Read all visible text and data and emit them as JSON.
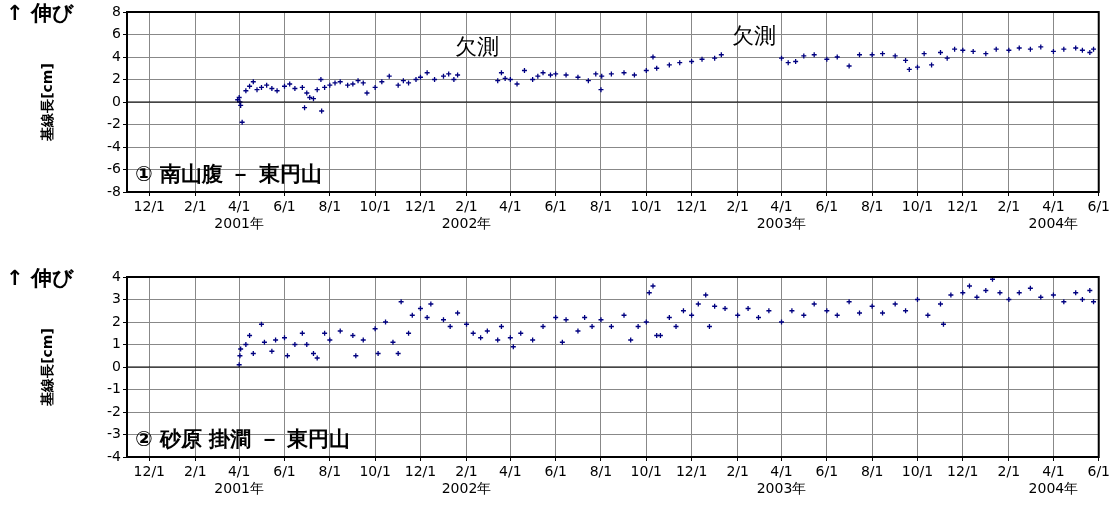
{
  "chart_data": [
    {
      "type": "scatter",
      "title": "① 南山腹 － 東円山",
      "ylabel": "基線長[cm]",
      "x": [
        "2001-03-30",
        "2001-04-01",
        "2001-04-02",
        "2001-04-03",
        "2001-04-05",
        "2001-04-10",
        "2001-04-15",
        "2001-04-20",
        "2001-04-25",
        "2001-05-01",
        "2001-05-08",
        "2001-05-15",
        "2001-05-22",
        "2001-06-01",
        "2001-06-08",
        "2001-06-15",
        "2001-06-25",
        "2001-06-28",
        "2001-07-01",
        "2001-07-05",
        "2001-07-10",
        "2001-07-15",
        "2001-07-20",
        "2001-07-21",
        "2001-07-25",
        "2001-08-01",
        "2001-08-08",
        "2001-08-15",
        "2001-08-25",
        "2001-09-01",
        "2001-09-08",
        "2001-09-15",
        "2001-09-20",
        "2001-10-01",
        "2001-10-10",
        "2001-10-20",
        "2001-11-01",
        "2001-11-08",
        "2001-11-15",
        "2001-11-25",
        "2001-12-01",
        "2001-12-10",
        "2001-12-20",
        "2002-01-01",
        "2002-01-08",
        "2002-01-15",
        "2002-01-20",
        "2002-03-15",
        "2002-03-20",
        "2002-03-25",
        "2002-04-01",
        "2002-04-10",
        "2002-04-20",
        "2002-05-01",
        "2002-05-08",
        "2002-05-15",
        "2002-05-25",
        "2002-06-01",
        "2002-06-15",
        "2002-07-01",
        "2002-07-15",
        "2002-07-25",
        "2002-08-01",
        "2002-08-02",
        "2002-08-15",
        "2002-09-01",
        "2002-09-15",
        "2002-10-01",
        "2002-10-10",
        "2002-10-15",
        "2002-11-01",
        "2002-11-15",
        "2002-12-01",
        "2002-12-15",
        "2003-01-01",
        "2003-01-10",
        "2003-04-01",
        "2003-04-10",
        "2003-04-20",
        "2003-05-01",
        "2003-05-15",
        "2003-06-01",
        "2003-06-15",
        "2003-07-01",
        "2003-07-15",
        "2003-08-01",
        "2003-08-15",
        "2003-09-01",
        "2003-09-15",
        "2003-09-20",
        "2003-10-01",
        "2003-10-10",
        "2003-10-20",
        "2003-11-01",
        "2003-11-10",
        "2003-11-20",
        "2003-12-01",
        "2003-12-15",
        "2004-01-01",
        "2004-01-15",
        "2004-02-01",
        "2004-02-15",
        "2004-03-01",
        "2004-03-15",
        "2004-04-01",
        "2004-04-15",
        "2004-05-01",
        "2004-05-10",
        "2004-05-20",
        "2004-05-25"
      ],
      "series": [
        {
          "color": "#000080",
          "values": [
            0.2,
            0.4,
            0,
            -0.3,
            -1.8,
            1.0,
            1.4,
            1.8,
            1.1,
            1.3,
            1.5,
            1.2,
            1.0,
            1.4,
            1.6,
            1.2,
            1.3,
            -0.5,
            0.8,
            0.4,
            0.3,
            1.1,
            2.0,
            -0.8,
            1.3,
            1.5,
            1.7,
            1.8,
            1.5,
            1.6,
            1.9,
            1.7,
            0.8,
            1.3,
            1.8,
            2.3,
            1.5,
            1.9,
            1.7,
            2.0,
            2.2,
            2.6,
            2.0,
            2.3,
            2.5,
            2.0,
            2.4,
            1.9,
            2.6,
            2.1,
            2.0,
            1.6,
            2.8,
            2.0,
            2.3,
            2.6,
            2.4,
            2.5,
            2.4,
            2.2,
            1.9,
            2.5,
            1.1,
            2.3,
            2.5,
            2.6,
            2.4,
            2.8,
            4.0,
            3.0,
            3.3,
            3.5,
            3.6,
            3.8,
            3.9,
            4.2,
            3.9,
            3.5,
            3.6,
            4.1,
            4.2,
            3.8,
            4.0,
            3.2,
            4.2,
            4.2,
            4.3,
            4.1,
            3.7,
            2.9,
            3.1,
            4.3,
            3.3,
            4.4,
            3.9,
            4.7,
            4.6,
            4.5,
            4.3,
            4.7,
            4.6,
            4.8,
            4.7,
            4.9,
            4.5,
            4.7,
            4.8,
            4.6,
            4.4,
            4.7
          ]
        }
      ],
      "xlim": [
        "2000-11-01",
        "2004-06-01"
      ],
      "xticks": [
        {
          "value": "2000-12-01",
          "label": "12/1"
        },
        {
          "value": "2001-02-01",
          "label": "2/1"
        },
        {
          "value": "2001-04-01",
          "label": "4/1\n2001年"
        },
        {
          "value": "2001-06-01",
          "label": "6/1"
        },
        {
          "value": "2001-08-01",
          "label": "8/1"
        },
        {
          "value": "2001-10-01",
          "label": "10/1"
        },
        {
          "value": "2001-12-01",
          "label": "12/1"
        },
        {
          "value": "2002-02-01",
          "label": "2/1\n2002年"
        },
        {
          "value": "2002-04-01",
          "label": "4/1"
        },
        {
          "value": "2002-06-01",
          "label": "6/1"
        },
        {
          "value": "2002-08-01",
          "label": "8/1"
        },
        {
          "value": "2002-10-01",
          "label": "10/1"
        },
        {
          "value": "2002-12-01",
          "label": "12/1"
        },
        {
          "value": "2003-02-01",
          "label": "2/1"
        },
        {
          "value": "2003-04-01",
          "label": "4/1\n2003年"
        },
        {
          "value": "2003-06-01",
          "label": "6/1"
        },
        {
          "value": "2003-08-01",
          "label": "8/1"
        },
        {
          "value": "2003-10-01",
          "label": "10/1"
        },
        {
          "value": "2003-12-01",
          "label": "12/1"
        },
        {
          "value": "2004-02-01",
          "label": "2/1"
        },
        {
          "value": "2004-04-01",
          "label": "4/1\n2004年"
        },
        {
          "value": "2004-06-01",
          "label": "6/1"
        }
      ],
      "ylim": [
        -8,
        8
      ],
      "yticks": [
        -8,
        -6,
        -4,
        -2,
        0,
        2,
        4,
        6,
        8
      ],
      "grid": true,
      "legend": false,
      "marker": "cross",
      "ref_lines": [
        {
          "axis": "y",
          "value": 0,
          "color": "#000000"
        }
      ],
      "annotations": [
        "↑ 伸び",
        "欠測",
        "欠測"
      ]
    },
    {
      "type": "scatter",
      "title": "② 砂原 掛澗 － 東円山",
      "ylabel": "基線長[cm]",
      "x": [
        "2001-04-01",
        "2001-04-02",
        "2001-04-03",
        "2001-04-10",
        "2001-04-15",
        "2001-04-20",
        "2001-05-01",
        "2001-05-05",
        "2001-05-15",
        "2001-05-20",
        "2001-06-01",
        "2001-06-05",
        "2001-06-15",
        "2001-06-25",
        "2001-07-01",
        "2001-07-10",
        "2001-07-15",
        "2001-07-25",
        "2001-08-01",
        "2001-08-15",
        "2001-09-01",
        "2001-09-05",
        "2001-09-15",
        "2001-10-01",
        "2001-10-05",
        "2001-10-15",
        "2001-10-25",
        "2001-11-01",
        "2001-11-05",
        "2001-11-15",
        "2001-11-20",
        "2001-12-01",
        "2001-12-10",
        "2001-12-15",
        "2002-01-01",
        "2002-01-10",
        "2002-01-20",
        "2002-02-01",
        "2002-02-10",
        "2002-02-20",
        "2002-03-01",
        "2002-03-15",
        "2002-03-20",
        "2002-04-01",
        "2002-04-05",
        "2002-04-15",
        "2002-05-01",
        "2002-05-15",
        "2002-06-01",
        "2002-06-10",
        "2002-06-15",
        "2002-07-01",
        "2002-07-10",
        "2002-07-20",
        "2002-08-01",
        "2002-08-15",
        "2002-09-01",
        "2002-09-10",
        "2002-09-20",
        "2002-10-01",
        "2002-10-05",
        "2002-10-10",
        "2002-10-15",
        "2002-10-20",
        "2002-11-01",
        "2002-11-10",
        "2002-11-20",
        "2002-12-01",
        "2002-12-10",
        "2002-12-20",
        "2002-12-25",
        "2003-01-01",
        "2003-01-15",
        "2003-02-01",
        "2003-02-15",
        "2003-03-01",
        "2003-03-15",
        "2003-04-01",
        "2003-04-15",
        "2003-05-01",
        "2003-05-15",
        "2003-06-01",
        "2003-06-15",
        "2003-07-01",
        "2003-07-15",
        "2003-08-01",
        "2003-08-15",
        "2003-09-01",
        "2003-09-15",
        "2003-10-01",
        "2003-10-15",
        "2003-11-01",
        "2003-11-05",
        "2003-11-15",
        "2003-12-01",
        "2003-12-10",
        "2003-12-20",
        "2004-01-01",
        "2004-01-10",
        "2004-01-20",
        "2004-02-01",
        "2004-02-15",
        "2004-03-01",
        "2004-03-15",
        "2004-04-01",
        "2004-04-15",
        "2004-05-01",
        "2004-05-10",
        "2004-05-20",
        "2004-05-25"
      ],
      "series": [
        {
          "color": "#000080",
          "values": [
            0.1,
            0.5,
            0.8,
            1.0,
            1.4,
            0.6,
            1.9,
            1.1,
            0.7,
            1.2,
            1.3,
            0.5,
            1.0,
            1.5,
            1.0,
            0.6,
            0.4,
            1.5,
            1.2,
            1.6,
            1.4,
            0.5,
            1.2,
            1.7,
            0.6,
            2.0,
            1.1,
            0.6,
            2.9,
            1.5,
            2.3,
            2.6,
            2.2,
            2.8,
            2.1,
            1.8,
            2.4,
            1.9,
            1.5,
            1.3,
            1.6,
            1.2,
            1.8,
            1.3,
            0.9,
            1.5,
            1.2,
            1.8,
            2.2,
            1.1,
            2.1,
            1.6,
            2.2,
            1.8,
            2.1,
            1.8,
            2.3,
            1.2,
            1.8,
            2.0,
            3.3,
            3.6,
            1.4,
            1.4,
            2.2,
            1.8,
            2.5,
            2.3,
            2.8,
            3.2,
            1.8,
            2.7,
            2.6,
            2.3,
            2.6,
            2.2,
            2.5,
            2.0,
            2.5,
            2.3,
            2.8,
            2.5,
            2.3,
            2.9,
            2.4,
            2.7,
            2.4,
            2.8,
            2.5,
            3.0,
            2.3,
            2.8,
            1.9,
            3.2,
            3.3,
            3.6,
            3.1,
            3.4,
            3.9,
            3.3,
            3.0,
            3.3,
            3.5,
            3.1,
            3.2,
            2.9,
            3.3,
            3.0,
            3.4,
            2.9
          ]
        }
      ],
      "xlim": [
        "2000-11-01",
        "2004-06-01"
      ],
      "xticks": [
        {
          "value": "2000-12-01",
          "label": "12/1"
        },
        {
          "value": "2001-02-01",
          "label": "2/1"
        },
        {
          "value": "2001-04-01",
          "label": "4/1\n2001年"
        },
        {
          "value": "2001-06-01",
          "label": "6/1"
        },
        {
          "value": "2001-08-01",
          "label": "8/1"
        },
        {
          "value": "2001-10-01",
          "label": "10/1"
        },
        {
          "value": "2001-12-01",
          "label": "12/1"
        },
        {
          "value": "2002-02-01",
          "label": "2/1\n2002年"
        },
        {
          "value": "2002-04-01",
          "label": "4/1"
        },
        {
          "value": "2002-06-01",
          "label": "6/1"
        },
        {
          "value": "2002-08-01",
          "label": "8/1"
        },
        {
          "value": "2002-10-01",
          "label": "10/1"
        },
        {
          "value": "2002-12-01",
          "label": "12/1"
        },
        {
          "value": "2003-02-01",
          "label": "2/1"
        },
        {
          "value": "2003-04-01",
          "label": "4/1\n2003年"
        },
        {
          "value": "2003-06-01",
          "label": "6/1"
        },
        {
          "value": "2003-08-01",
          "label": "8/1"
        },
        {
          "value": "2003-10-01",
          "label": "10/1"
        },
        {
          "value": "2003-12-01",
          "label": "12/1"
        },
        {
          "value": "2004-02-01",
          "label": "2/1"
        },
        {
          "value": "2004-04-01",
          "label": "4/1\n2004年"
        },
        {
          "value": "2004-06-01",
          "label": "6/1"
        }
      ],
      "ylim": [
        -4,
        4
      ],
      "yticks": [
        -4,
        -3,
        -2,
        -1,
        0,
        1,
        2,
        3,
        4
      ],
      "grid": true,
      "legend": false,
      "marker": "cross",
      "ref_lines": [
        {
          "axis": "y",
          "value": 0,
          "color": "#000000"
        }
      ],
      "annotations": [
        "↑ 伸び"
      ]
    }
  ]
}
